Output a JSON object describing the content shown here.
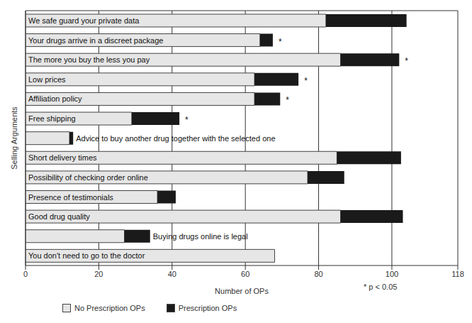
{
  "chart_data": {
    "type": "bar",
    "orientation": "horizontal",
    "stacked": true,
    "y_label": "Selling Arguments",
    "x_label": "Number of OPs",
    "annotations": [
      "* p < 0.05"
    ],
    "categories": [
      "We safe guard your private data",
      "Your drugs arrive in a discreet package",
      "The more you buy the less you pay",
      "Low prices",
      "Affiliation policy",
      "Free shipping",
      "Advice to buy another drug together with the selected one",
      "Short delivery times",
      "Possibility of checking order online",
      "Presence of testimonials",
      "Good drug quality",
      "Buying drugs online is legal",
      "You don't need to go to the doctor"
    ],
    "series": [
      {
        "name": "No Prescription OPs",
        "color": "#e6e6e6",
        "values": [
          82,
          64,
          86,
          62.5,
          62.5,
          29,
          12,
          85,
          77,
          36,
          86,
          27,
          68
        ]
      },
      {
        "name": "Prescription OPs",
        "color": "#1a1a1a",
        "values": [
          22,
          3.5,
          16,
          12,
          7,
          13,
          1,
          17.5,
          10,
          5,
          17,
          7,
          0
        ]
      }
    ],
    "significance": [
      null,
      "*",
      "*",
      "*",
      "*",
      "*",
      null,
      null,
      null,
      null,
      null,
      null,
      null
    ],
    "xlim": [
      0,
      118
    ],
    "xticks": [
      0,
      20,
      40,
      60,
      80,
      100,
      118
    ],
    "grid": true,
    "legend": "bottom",
    "tick_labels": "x"
  }
}
